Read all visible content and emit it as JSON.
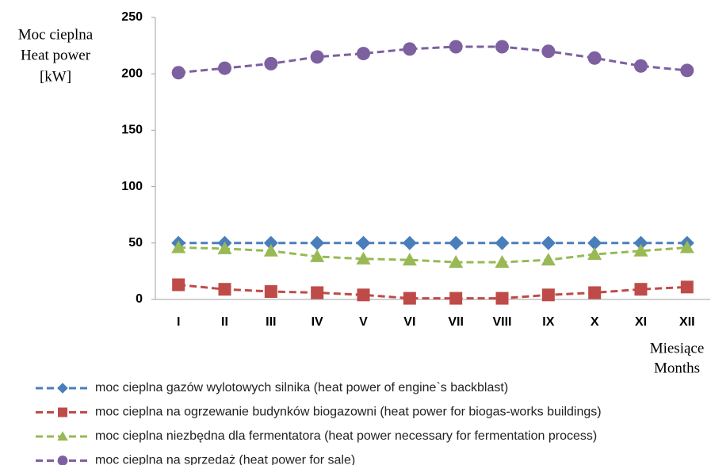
{
  "chart_data": {
    "type": "line",
    "y_label": [
      "Moc cieplna",
      "Heat power",
      "[kW]"
    ],
    "x_label": [
      "Miesiące",
      "Months"
    ],
    "categories": [
      "I",
      "II",
      "III",
      "IV",
      "V",
      "VI",
      "VII",
      "VIII",
      "IX",
      "X",
      "XI",
      "XII"
    ],
    "series": [
      {
        "name": "moc cieplna gazów wylotowych silnika (heat power of engine`s backblast)",
        "color": "#4a7ebb",
        "marker": "diamond",
        "values": [
          50,
          50,
          50,
          50,
          50,
          50,
          50,
          50,
          50,
          50,
          50,
          50
        ]
      },
      {
        "name": "moc cieplna na ogrzewanie budynków biogazowni (heat power for biogas-works buildings)",
        "color": "#be4b48",
        "marker": "square",
        "values": [
          13,
          9,
          7,
          6,
          4,
          1,
          1,
          1,
          4,
          6,
          9,
          11
        ]
      },
      {
        "name": "moc cieplna niezbędna dla fermentatora (heat power necessary for fermentation process)",
        "color": "#98b954",
        "marker": "triangle",
        "values": [
          46,
          45,
          43,
          38,
          36,
          35,
          33,
          33,
          35,
          40,
          43,
          46
        ]
      },
      {
        "name": "moc cieplna na sprzedaż (heat power for sale)",
        "color": "#7d60a0",
        "marker": "circle",
        "values": [
          201,
          205,
          209,
          215,
          218,
          222,
          224,
          224,
          220,
          214,
          207,
          203
        ]
      }
    ],
    "ylim": [
      0,
      250
    ],
    "yticks": [
      0,
      50,
      100,
      150,
      200,
      250
    ],
    "grid": false
  }
}
